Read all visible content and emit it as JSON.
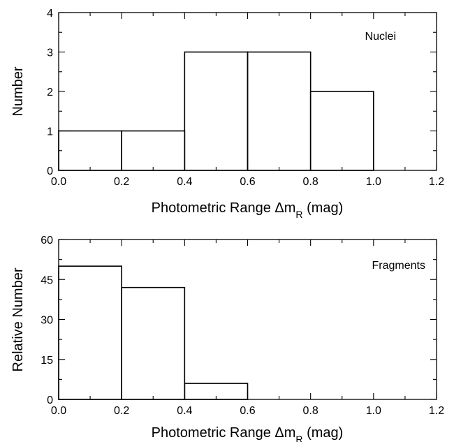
{
  "chart_data": [
    {
      "type": "bar",
      "title": "",
      "annotation": "Nuclei",
      "xlabel": "Photometric Range Δm",
      "xlabel_sub": "R",
      "xlabel_unit": " (mag)",
      "ylabel": "Number",
      "xlim": [
        0,
        1.2
      ],
      "ylim": [
        0,
        4
      ],
      "xticks": [
        0.0,
        0.2,
        0.4,
        0.6,
        0.8,
        1.0,
        1.2
      ],
      "xtick_labels": [
        "0.0",
        "0.2",
        "0.4",
        "0.6",
        "0.8",
        "1.0",
        "1.2"
      ],
      "yticks": [
        0,
        1,
        2,
        3,
        4
      ],
      "ytick_labels": [
        "0",
        "1",
        "2",
        "3",
        "4"
      ],
      "bins": [
        [
          0.0,
          0.2
        ],
        [
          0.2,
          0.4
        ],
        [
          0.4,
          0.6
        ],
        [
          0.6,
          0.8
        ],
        [
          0.8,
          1.0
        ]
      ],
      "values": [
        1,
        1,
        3,
        3,
        2
      ],
      "grid": false,
      "legend": "none"
    },
    {
      "type": "bar",
      "title": "",
      "annotation": "Fragments",
      "xlabel": "Photometric Range Δm",
      "xlabel_sub": "R",
      "xlabel_unit": " (mag)",
      "ylabel": "Relative Number",
      "xlim": [
        0,
        1.2
      ],
      "ylim": [
        0,
        60
      ],
      "xticks": [
        0.0,
        0.2,
        0.4,
        0.6,
        0.8,
        1.0,
        1.2
      ],
      "xtick_labels": [
        "0.0",
        "0.2",
        "0.4",
        "0.6",
        "0.8",
        "1.0",
        "1.2"
      ],
      "yticks": [
        0,
        15,
        30,
        45,
        60
      ],
      "ytick_labels": [
        "0",
        "15",
        "30",
        "45",
        "60"
      ],
      "bins": [
        [
          0.0,
          0.2
        ],
        [
          0.2,
          0.4
        ],
        [
          0.4,
          0.6
        ]
      ],
      "values": [
        50,
        42,
        6
      ],
      "grid": false,
      "legend": "none"
    }
  ]
}
